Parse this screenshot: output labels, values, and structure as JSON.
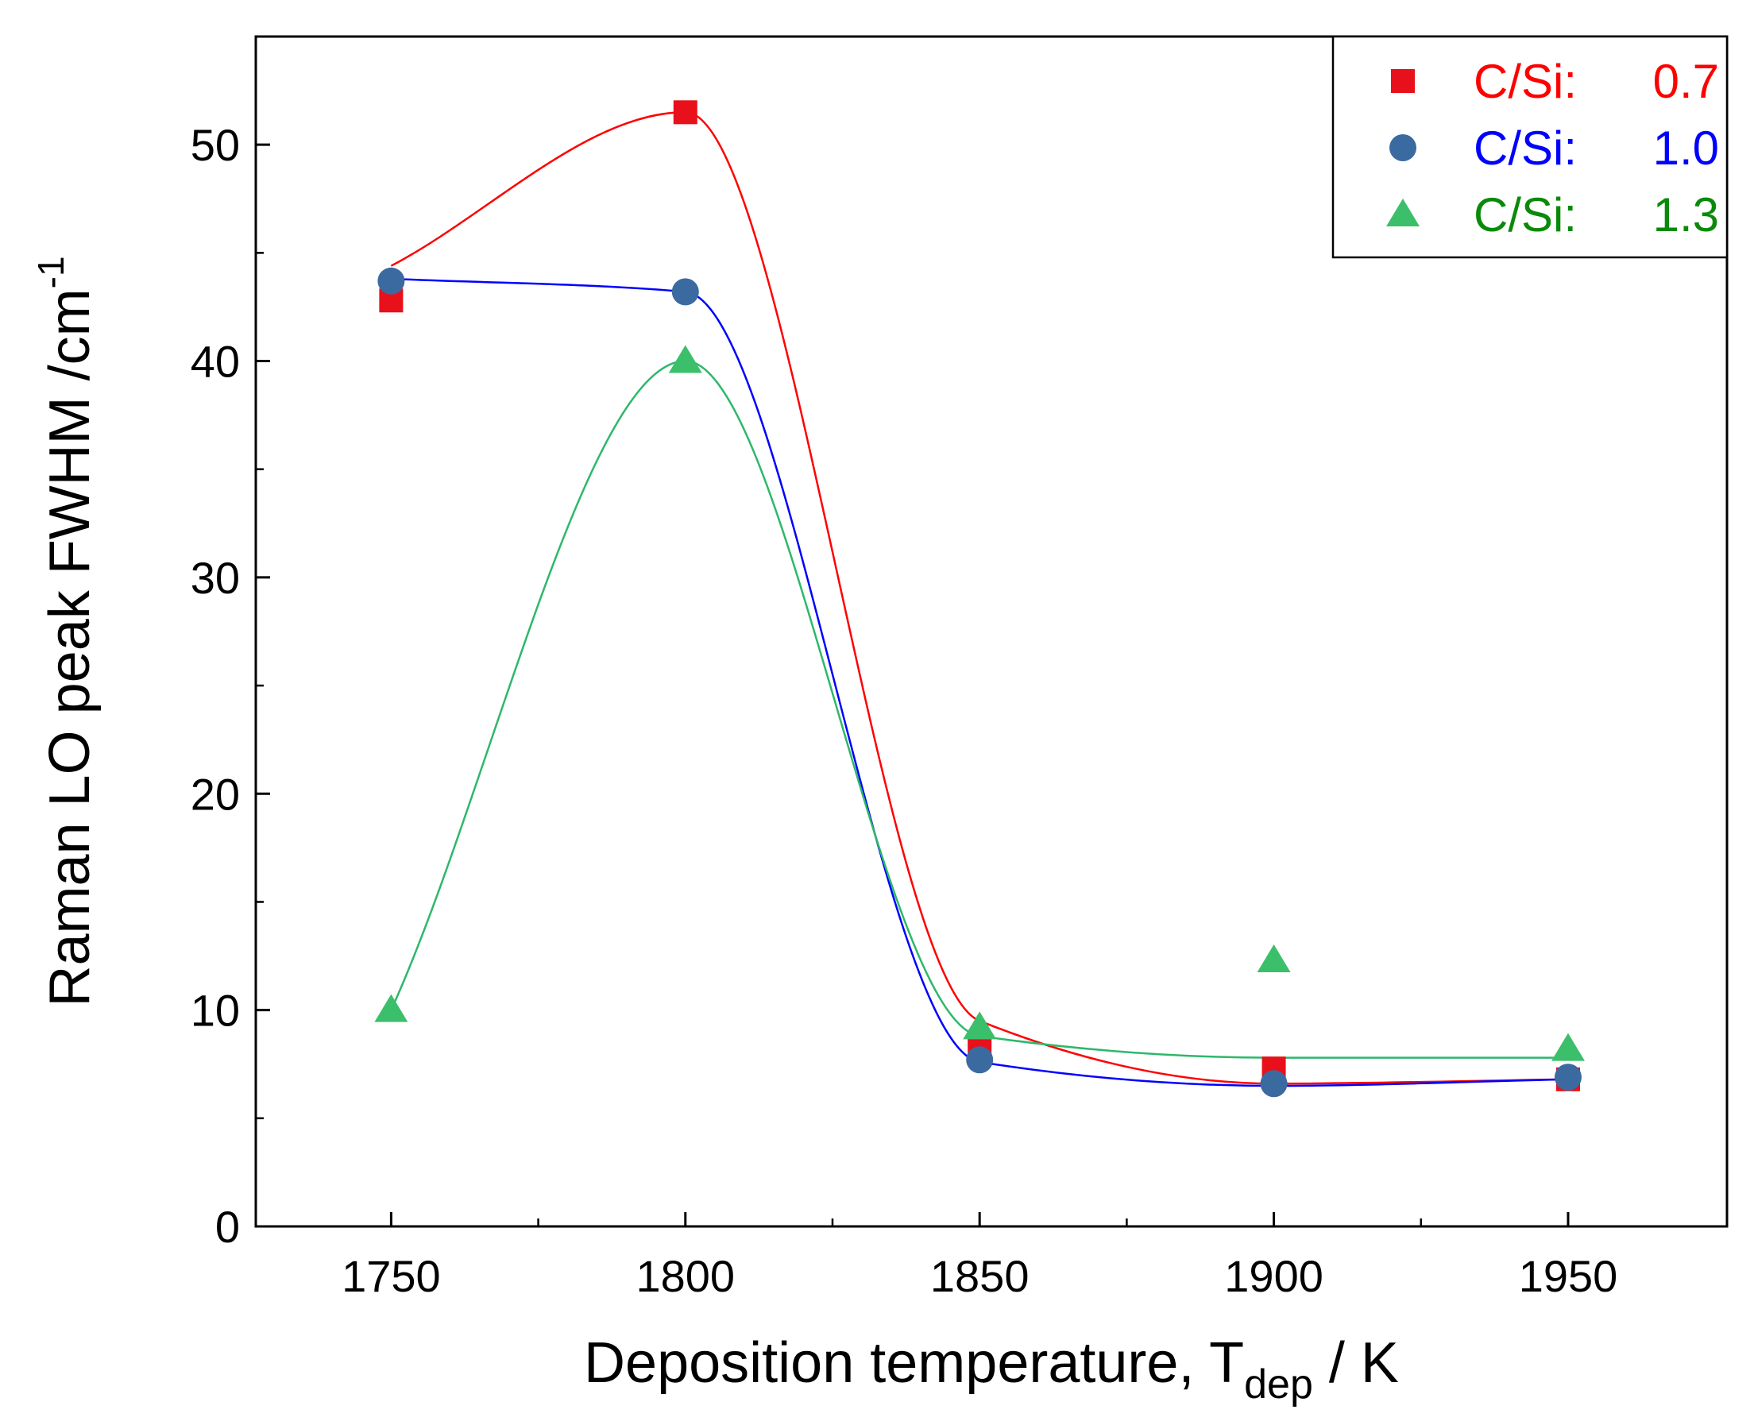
{
  "chart_data": {
    "type": "line",
    "title": "",
    "xlabel": {
      "main": "Deposition temperature, T",
      "sub": "dep",
      "suffix": " / K"
    },
    "ylabel": {
      "main": "Raman LO peak FWHM /cm",
      "sup": "-1"
    },
    "xlim": [
      1727,
      1977
    ],
    "ylim": [
      0,
      55
    ],
    "xticks": [
      1750,
      1800,
      1850,
      1900,
      1950
    ],
    "xtick_labels": [
      "1750",
      "1800",
      "1850",
      "1900",
      "1950"
    ],
    "xminor": [
      1775,
      1825,
      1875,
      1925
    ],
    "yticks": [
      0,
      10,
      20,
      30,
      40,
      50
    ],
    "ytick_labels": [
      "0",
      "10",
      "20",
      "30",
      "40",
      "50"
    ],
    "yminor": [
      5,
      15,
      25,
      35,
      45
    ],
    "legend_position": "top-right",
    "series": [
      {
        "name": "C/Si",
        "label_value": "0.7",
        "marker": "square",
        "marker_color": "#e8101a",
        "line_color": "#ff0000",
        "text_color": "#ff0000",
        "x": [
          1750,
          1800,
          1850,
          1900,
          1950
        ],
        "y": [
          42.8,
          51.5,
          8.3,
          7.3,
          6.8
        ],
        "fit_x": [
          1750,
          1800,
          1850,
          1900,
          1950
        ],
        "fit_y": [
          44.4,
          51.5,
          9.5,
          6.6,
          6.8
        ]
      },
      {
        "name": "C/Si",
        "label_value": "1.0",
        "marker": "circle",
        "marker_color": "#3b6aa0",
        "line_color": "#0000ff",
        "text_color": "#0000ff",
        "x": [
          1750,
          1800,
          1850,
          1900,
          1950
        ],
        "y": [
          43.7,
          43.2,
          7.7,
          6.6,
          6.9
        ],
        "fit_x": [
          1750,
          1800,
          1850,
          1900,
          1950
        ],
        "fit_y": [
          43.8,
          43.2,
          7.6,
          6.5,
          6.8
        ]
      },
      {
        "name": "C/Si",
        "label_value": "1.3",
        "marker": "triangle",
        "marker_color": "#3cbf6a",
        "line_color": "#2db86a",
        "text_color": "#0a8a0a",
        "x": [
          1750,
          1800,
          1850,
          1900,
          1950
        ],
        "y": [
          10.0,
          40.0,
          9.2,
          12.3,
          8.2
        ],
        "fit_x": [
          1750,
          1800,
          1850,
          1900,
          1950
        ],
        "fit_y": [
          10.0,
          40.0,
          8.8,
          7.8,
          7.8
        ]
      }
    ]
  }
}
